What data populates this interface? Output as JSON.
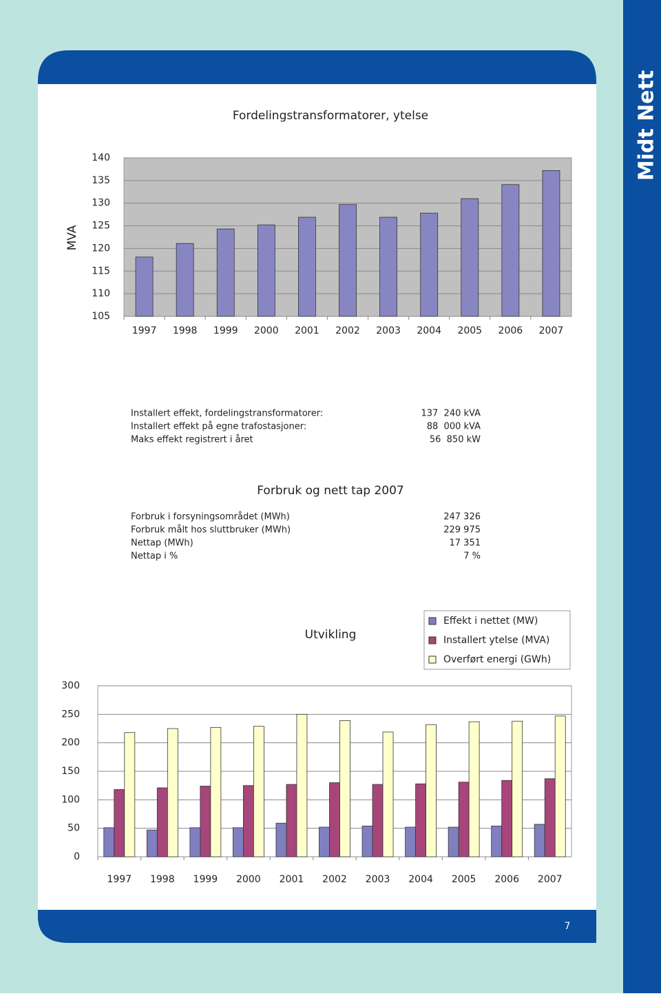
{
  "brand": "Midt Nett",
  "page_number": 7,
  "chart_data": [
    {
      "type": "bar",
      "title": "Fordelingstransformatorer, ytelse",
      "y_label": "MVA",
      "categories": [
        "1997",
        "1998",
        "1999",
        "2000",
        "2001",
        "2002",
        "2003",
        "2004",
        "2005",
        "2006",
        "2007"
      ],
      "values": [
        118.1,
        121.1,
        124.3,
        125.2,
        126.9,
        129.7,
        126.9,
        127.8,
        131,
        134.1,
        137.2
      ],
      "color": "#8886c2",
      "ylim": [
        105,
        140
      ],
      "yticks": [
        105,
        110,
        115,
        120,
        125,
        130,
        135,
        140
      ],
      "grid": true
    },
    {
      "type": "bar",
      "title": "Utvikling",
      "legend": "top-right",
      "categories": [
        "1997",
        "1998",
        "1999",
        "2000",
        "2001",
        "2002",
        "2003",
        "2004",
        "2005",
        "2006",
        "2007"
      ],
      "series": [
        {
          "name": "Effekt i nettet (MW)",
          "color": "#8080c0",
          "values": [
            51,
            47,
            51,
            51,
            59,
            52,
            54,
            52,
            52,
            54,
            57
          ]
        },
        {
          "name": "Installert ytelse (MVA)",
          "color": "#a6467a",
          "values": [
            118,
            121,
            124,
            125,
            127,
            130,
            127,
            128,
            131,
            134,
            137
          ]
        },
        {
          "name": "Overført energi (GWh)",
          "color": "#ffffcc",
          "values": [
            218,
            225,
            227,
            229,
            250,
            239,
            219,
            232,
            237,
            238,
            247
          ]
        }
      ],
      "ylim": [
        0,
        300
      ],
      "yticks": [
        0,
        50,
        100,
        150,
        200,
        250,
        300
      ],
      "grid": true
    }
  ],
  "capacity": {
    "rows": [
      [
        "Installert effekt, fordelingstransformatorer:",
        "137  240 kVA"
      ],
      [
        "Installert effekt på egne trafostasjoner:",
        "88  000 kVA"
      ],
      [
        "Maks effekt registrert i året",
        "56  850 kW"
      ]
    ]
  },
  "consumption": {
    "title": "Forbruk og nett tap 2007",
    "rows": [
      [
        "Forbruk i forsyningsområdet (MWh)",
        "247 326"
      ],
      [
        "Forbruk målt hos sluttbruker (MWh)",
        "229 975"
      ],
      [
        "Nettap (MWh)",
        "17 351"
      ],
      [
        "Nettap i %",
        "7 %"
      ]
    ]
  }
}
